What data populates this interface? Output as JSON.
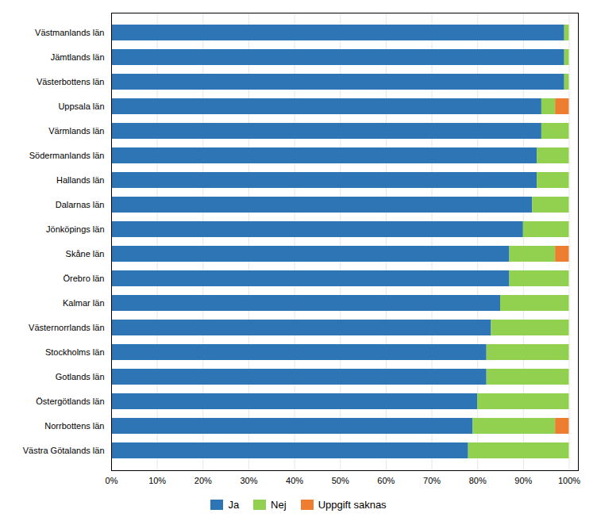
{
  "chart_data": {
    "type": "bar",
    "orientation": "horizontal",
    "stacked": true,
    "categories": [
      "Västmanlands län",
      "Jämtlands län",
      "Västerbottens län",
      "Uppsala län",
      "Värmlands län",
      "Södermanlands län",
      "Hallands län",
      "Dalarnas län",
      "Jönköpings län",
      "Skåne län",
      "Örebro län",
      "Kalmar län",
      "Västernorrlands län",
      "Stockholms län",
      "Gotlands län",
      "Östergötlands län",
      "Norrbottens län",
      "Västra Götalands län"
    ],
    "series": [
      {
        "name": "Ja",
        "color": "#2E75B6",
        "values": [
          99,
          99,
          99,
          94,
          94,
          93,
          93,
          92,
          90,
          87,
          87,
          85,
          83,
          82,
          82,
          80,
          79,
          78
        ]
      },
      {
        "name": "Nej",
        "color": "#92D050",
        "values": [
          1,
          1,
          1,
          3,
          6,
          7,
          7,
          8,
          10,
          10,
          13,
          15,
          17,
          18,
          18,
          20,
          18,
          22
        ]
      },
      {
        "name": "Uppgift saknas",
        "color": "#ED7D31",
        "values": [
          0,
          0,
          0,
          3,
          0,
          0,
          0,
          0,
          0,
          3,
          0,
          0,
          0,
          0,
          0,
          0,
          3,
          0
        ]
      }
    ],
    "xlim": [
      0,
      102
    ],
    "xticks": [
      {
        "value": 0,
        "label": "0%"
      },
      {
        "value": 10,
        "label": "10%"
      },
      {
        "value": 20,
        "label": "20%"
      },
      {
        "value": 30,
        "label": "30%"
      },
      {
        "value": 40,
        "label": "40%"
      },
      {
        "value": 50,
        "label": "50%"
      },
      {
        "value": 60,
        "label": "60%"
      },
      {
        "value": 70,
        "label": "70%"
      },
      {
        "value": 80,
        "label": "80%"
      },
      {
        "value": 90,
        "label": "90%"
      },
      {
        "value": 100,
        "label": "100%"
      }
    ],
    "grid": true,
    "legend": "bottom"
  }
}
